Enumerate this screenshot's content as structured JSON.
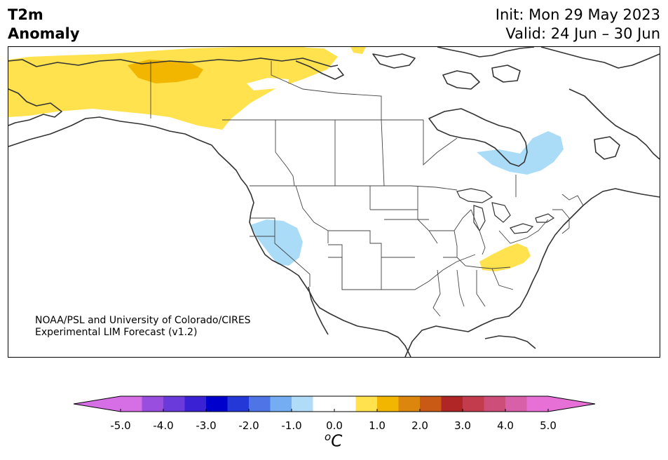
{
  "title": {
    "line1": "T2m",
    "line2": "Anomaly"
  },
  "dates": {
    "init": "Init: Mon 29 May 2023",
    "valid": "Valid: 24 Jun – 30 Jun"
  },
  "credit": {
    "line1": "NOAA/PSL and University of Colorado/CIRES",
    "line2": "Experimental LIM Forecast (v1.2)"
  },
  "colorbar": {
    "unit_base": "C",
    "unit_sup": "o",
    "min": -5.0,
    "max": 5.0,
    "step": 0.5,
    "ticks": [
      "-5.0",
      "-4.0",
      "-3.0",
      "-2.0",
      "-1.0",
      "0.0",
      "1.0",
      "2.0",
      "3.0",
      "4.0",
      "5.0"
    ],
    "colors": [
      "#d66ee6",
      "#9a4ee0",
      "#6a3adb",
      "#3a22d4",
      "#0000cc",
      "#2438d8",
      "#4f74e6",
      "#74adf2",
      "#b0dcf8",
      "#ffffff",
      "#ffffff",
      "#ffe24e",
      "#f2b600",
      "#dc860e",
      "#c85a16",
      "#b02626",
      "#c23c4e",
      "#ce4e7a",
      "#d860a8",
      "#e670d6"
    ],
    "extend_low_color": "#d66ee6",
    "extend_high_color": "#e670d6"
  },
  "map_colors": {
    "land_line": "#333333",
    "border_line": "#444444",
    "warm_light": "#ffe24e",
    "warm_mid": "#f2b600",
    "cool_light": "#aadcf8"
  }
}
